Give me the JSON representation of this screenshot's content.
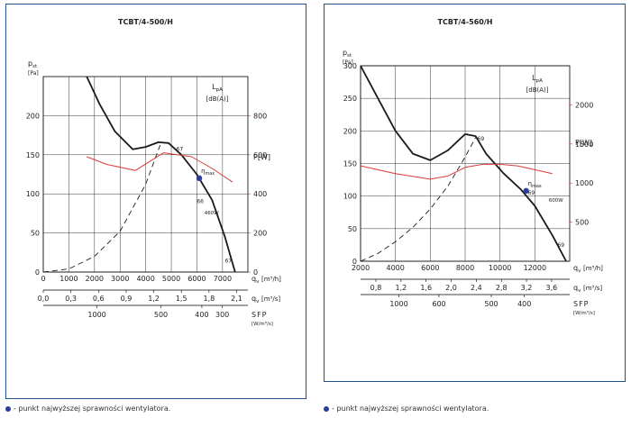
{
  "footnote": "- punkt najwyższej sprawności wentylatora.",
  "colors": {
    "frame": "#1f4f8f",
    "pressure": "#1a1a1a",
    "power": "#d93a3a",
    "noise": "#2e9e6b",
    "point": "#2a3f9a"
  },
  "chart_data": [
    {
      "type": "line",
      "title": "TCBT/4-500/H",
      "ylabel": "p",
      "ylabel_sub": "st",
      "ylabel_unit": "[Pa]",
      "y_ticks": [
        "0",
        "50",
        "100",
        "150",
        "200"
      ],
      "ylim": [
        0,
        250
      ],
      "power_label": "P[W]",
      "power_ticks": [
        "0",
        "200",
        "400",
        "600",
        "800"
      ],
      "power_lim": [
        0,
        1000
      ],
      "noise_label": "L",
      "noise_label_sub": "pA",
      "noise_unit": "[dB(A)]",
      "x_label": "q",
      "x_label_sub": "v",
      "x_unit": "[m³/h]",
      "x_ticks": [
        "0",
        "1000",
        "2000",
        "3000",
        "4000",
        "5000",
        "6000",
        "7000"
      ],
      "xlim": [
        0,
        8000
      ],
      "x2_label": "q",
      "x2_label_sub": "v",
      "x2_unit": "[m³/s]",
      "x2_ticks": [
        {
          "v": 0,
          "t": "0,0"
        },
        {
          "v": 1080,
          "t": "0,3"
        },
        {
          "v": 2160,
          "t": "0,6"
        },
        {
          "v": 3240,
          "t": "0,9"
        },
        {
          "v": 4320,
          "t": "1,2"
        },
        {
          "v": 5400,
          "t": "1,5"
        },
        {
          "v": 6480,
          "t": "1,8"
        },
        {
          "v": 7560,
          "t": "2,1"
        }
      ],
      "sfp_label": "SFP",
      "sfp_unit": "[W/m³/s]",
      "sfp_ticks": [
        {
          "v": 2100,
          "t": "1000"
        },
        {
          "v": 4600,
          "t": "500"
        },
        {
          "v": 6200,
          "t": "400"
        },
        {
          "v": 7000,
          "t": "300"
        }
      ],
      "series": [
        {
          "role": "pressure",
          "style": "solid",
          "x": [
            1700,
            2200,
            2800,
            3500,
            4000,
            4500,
            4900,
            5400,
            6000,
            6600,
            7100,
            7500
          ],
          "y": [
            250,
            215,
            180,
            157,
            160,
            166,
            165,
            150,
            125,
            92,
            45,
            0
          ]
        },
        {
          "role": "system",
          "style": "dashed",
          "x": [
            0,
            1000,
            2000,
            3000,
            4000,
            4600
          ],
          "y": [
            0,
            4,
            20,
            52,
            112,
            165
          ]
        },
        {
          "role": "power",
          "style": "solid",
          "x": [
            1700,
            2500,
            3600,
            4700,
            5800,
            6600,
            7400
          ],
          "y": [
            590,
            550,
            520,
            610,
            590,
            530,
            460
          ]
        }
      ],
      "noise_marks": [
        {
          "x": 5200,
          "y": 155,
          "t": "67"
        },
        {
          "x": 6000,
          "y": 88,
          "t": "66"
        },
        {
          "x": 7100,
          "y": 12,
          "t": "67"
        }
      ],
      "eff_point": {
        "x": 6100,
        "y": 120,
        "label": "η",
        "label_sub": "max"
      },
      "power_tag": {
        "x": 6300,
        "y": 74,
        "t": "460W"
      }
    },
    {
      "type": "line",
      "title": "TCBT/4-560/H",
      "ylabel": "p",
      "ylabel_sub": "st",
      "ylabel_unit": "[Pa]",
      "y_ticks": [
        "0",
        "50",
        "100",
        "150",
        "200",
        "250",
        "300"
      ],
      "ylim": [
        0,
        300
      ],
      "power_label": "P[W]",
      "power_ticks": [
        "500",
        "1000",
        "1500",
        "2000"
      ],
      "power_lim": [
        0,
        2500
      ],
      "noise_label": "L",
      "noise_label_sub": "pA",
      "noise_unit": "[dB(A)]",
      "x_label": "q",
      "x_label_sub": "v",
      "x_unit": "[m³/h]",
      "x_ticks": [
        "2000",
        "4000",
        "6000",
        "8000",
        "10000",
        "12000"
      ],
      "xlim": [
        2000,
        14000
      ],
      "x2_label": "q",
      "x2_label_sub": "v",
      "x2_unit": "[m³/s]",
      "x2_ticks": [
        {
          "v": 2880,
          "t": "0,8"
        },
        {
          "v": 4320,
          "t": "1,2"
        },
        {
          "v": 5760,
          "t": "1,6"
        },
        {
          "v": 7200,
          "t": "2,0"
        },
        {
          "v": 8640,
          "t": "2,4"
        },
        {
          "v": 10080,
          "t": "2,8"
        },
        {
          "v": 11520,
          "t": "3,2"
        },
        {
          "v": 12960,
          "t": "3,6"
        }
      ],
      "sfp_label": "SFP",
      "sfp_unit": "[W/m³/s]",
      "sfp_ticks": [
        {
          "v": 4200,
          "t": "1000"
        },
        {
          "v": 6500,
          "t": "600"
        },
        {
          "v": 9500,
          "t": "500"
        },
        {
          "v": 11400,
          "t": "400"
        }
      ],
      "series": [
        {
          "role": "pressure",
          "style": "solid",
          "x": [
            2000,
            3000,
            4000,
            5000,
            6000,
            7000,
            8000,
            8600,
            9200,
            10200,
            11200,
            12000,
            13000,
            13800
          ],
          "y": [
            300,
            250,
            200,
            165,
            155,
            170,
            195,
            192,
            165,
            135,
            110,
            85,
            40,
            0
          ]
        },
        {
          "role": "system",
          "style": "dashed",
          "x": [
            2000,
            3000,
            4000,
            5000,
            6000,
            7000,
            8000,
            8600
          ],
          "y": [
            0,
            12,
            30,
            52,
            80,
            115,
            160,
            190
          ]
        },
        {
          "role": "power",
          "style": "solid",
          "x": [
            2000,
            4000,
            6000,
            7000,
            8000,
            9000,
            10000,
            11000,
            12000,
            13000
          ],
          "y": [
            1220,
            1120,
            1050,
            1090,
            1200,
            1240,
            1240,
            1220,
            1170,
            1120
          ]
        }
      ],
      "noise_marks": [
        {
          "x": 8700,
          "y": 185,
          "t": "69"
        },
        {
          "x": 11600,
          "y": 102,
          "t": "69"
        },
        {
          "x": 13300,
          "y": 22,
          "t": "69"
        }
      ],
      "eff_point": {
        "x": 11500,
        "y": 108,
        "label": "η",
        "label_sub": "max"
      },
      "power_tag": {
        "x": 12800,
        "y": 91,
        "t": "600W"
      }
    }
  ]
}
